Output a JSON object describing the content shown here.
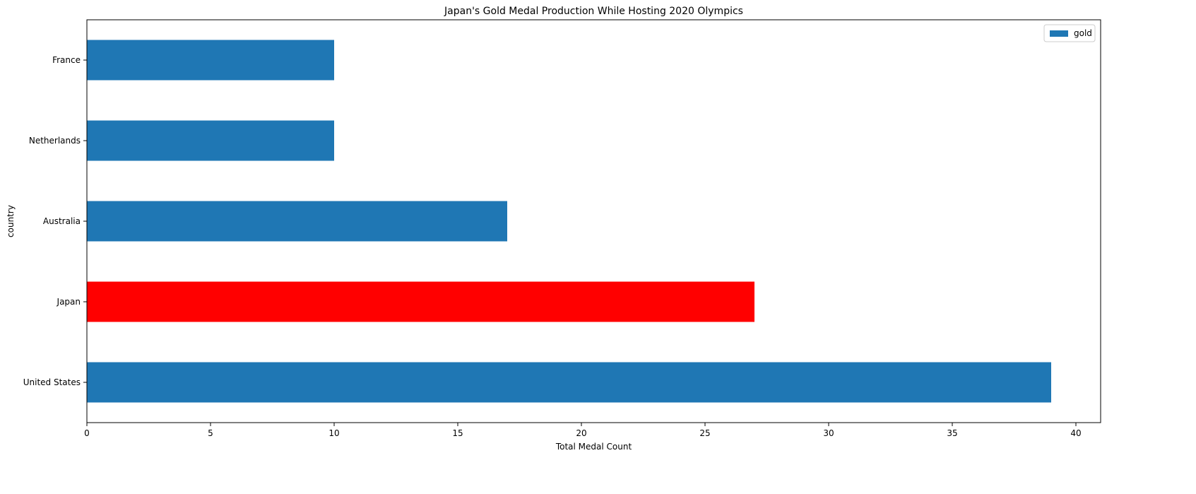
{
  "chart_data": {
    "type": "bar",
    "orientation": "horizontal",
    "title": "Japan's Gold Medal Production While Hosting 2020 Olympics",
    "xlabel": "Total Medal Count",
    "ylabel": "country",
    "categories": [
      "United States",
      "Japan",
      "Australia",
      "Netherlands",
      "France"
    ],
    "series": [
      {
        "name": "gold",
        "values": [
          39,
          27,
          17,
          10,
          10
        ],
        "color": "#1f77b4"
      }
    ],
    "highlight": {
      "category": "Japan",
      "color": "#ff0000"
    },
    "xlim": [
      0,
      41
    ],
    "xticks": [
      0,
      5,
      10,
      15,
      20,
      25,
      30,
      35,
      40
    ],
    "grid": false,
    "legend": {
      "position": "top-right"
    }
  }
}
